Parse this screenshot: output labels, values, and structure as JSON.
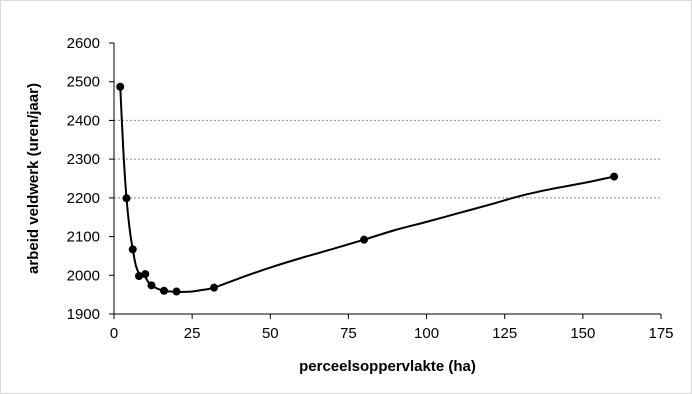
{
  "chart_data": {
    "type": "scatter",
    "title": "",
    "xlabel": "perceelsoppervlakte (ha)",
    "ylabel": "arbeid veldwerk (uren/jaar)",
    "xlim": [
      0,
      175
    ],
    "ylim": [
      1900,
      2600
    ],
    "xticks": [
      "0",
      "25",
      "50",
      "75",
      "100",
      "125",
      "150",
      "175"
    ],
    "yticks": [
      "1900",
      "2000",
      "2100",
      "2200",
      "2300",
      "2400",
      "2500",
      "2600"
    ],
    "grid": "horizontal dashed at 2200, 2300, 2400",
    "legend": "none",
    "series": [
      {
        "marker": "filled-circle",
        "color": "#000000",
        "x": [
          2,
          4,
          6,
          8,
          10,
          12,
          16,
          20,
          32,
          80,
          160
        ],
        "y": [
          2487,
          2199,
          2067,
          1998,
          2003,
          1974,
          1960,
          1958,
          1968,
          2092,
          2255
        ]
      }
    ],
    "trend_line": {
      "style": "smooth solid",
      "color": "#000000",
      "x": [
        2,
        3,
        4,
        5,
        6,
        7,
        8,
        9,
        10,
        11,
        12,
        14,
        16,
        18,
        20,
        22,
        25,
        28,
        32,
        40,
        50,
        60,
        70,
        80,
        90,
        100,
        110,
        120,
        130,
        140,
        150,
        160
      ],
      "y": [
        2487,
        2320,
        2199,
        2120,
        2067,
        2025,
        2005,
        1998,
        1995,
        1982,
        1974,
        1965,
        1960,
        1958,
        1957,
        1957,
        1958,
        1962,
        1968,
        1992,
        2020,
        2045,
        2068,
        2092,
        2117,
        2138,
        2160,
        2182,
        2205,
        2223,
        2238,
        2255
      ]
    }
  }
}
